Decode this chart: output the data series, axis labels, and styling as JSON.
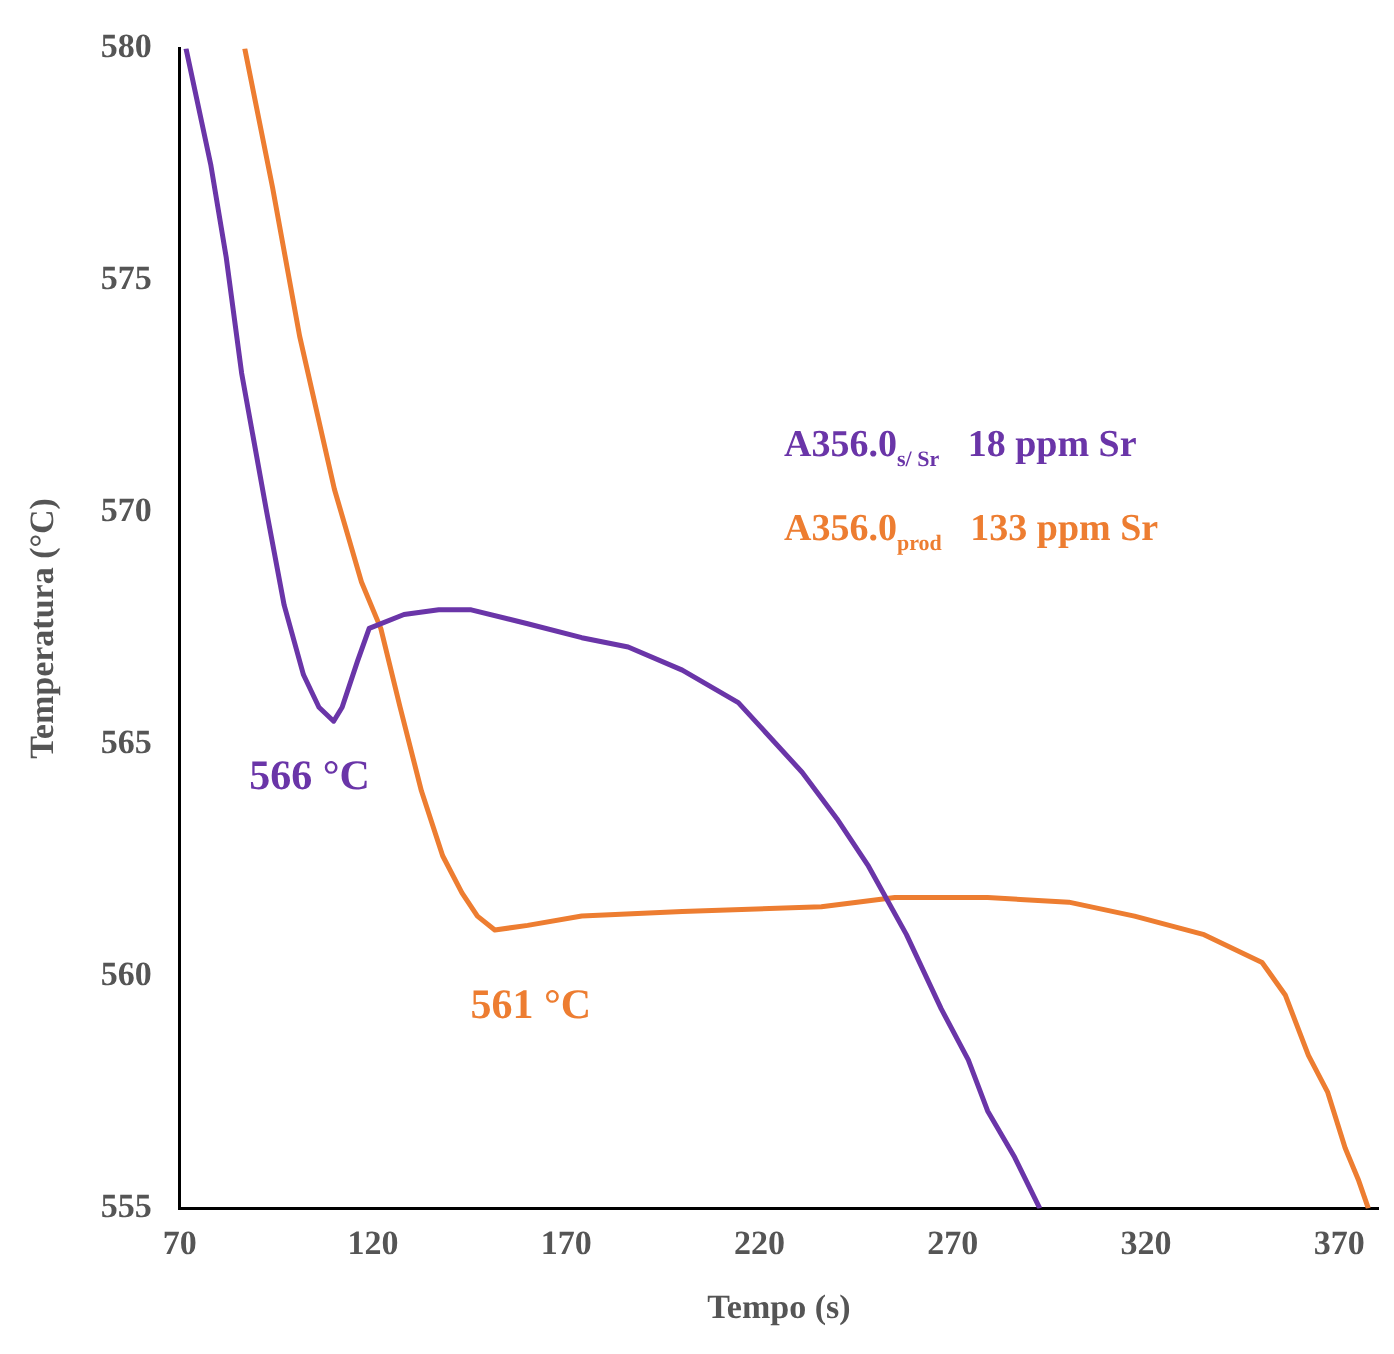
{
  "chart_data": {
    "type": "line",
    "xlabel": "Tempo (s)",
    "ylabel": "Temperatura (°C)",
    "xlim": [
      70,
      380
    ],
    "xticks": [
      70,
      120,
      170,
      220,
      270,
      320,
      370
    ],
    "ylim": [
      555,
      580
    ],
    "yticks": [
      555,
      560,
      565,
      570,
      575,
      580
    ],
    "grid": false,
    "marker": "none",
    "line_style": "solid",
    "series": [
      {
        "name": "A356.0$_{s/ Sr}$   18 ppm Sr",
        "color": "#6a35a8",
        "x": [
          71.6,
          78,
          82,
          86,
          92.5,
          97,
          102,
          106,
          109.8,
          112,
          116,
          119,
          128,
          137,
          145.4,
          160,
          174,
          186,
          200,
          214.5,
          231,
          240,
          248,
          258,
          267,
          274,
          279,
          286,
          292.5
        ],
        "values": [
          580,
          577.5,
          575.5,
          573,
          570,
          568,
          566.5,
          565.8,
          565.5,
          565.8,
          566.8,
          567.5,
          567.8,
          567.9,
          567.9,
          567.6,
          567.3,
          567.1,
          566.6,
          565.9,
          564.4,
          563.4,
          562.4,
          560.9,
          559.3,
          558.2,
          557.1,
          556.1,
          555
        ]
      },
      {
        "name": "A356.0$_{prod}$   133 ppm Sr",
        "color": "#ed7d31",
        "x": [
          86.8,
          94,
          101,
          110,
          117,
          122,
          127,
          132.5,
          138,
          143,
          147,
          151.5,
          160,
          174,
          200,
          236,
          255,
          279,
          300,
          317,
          335,
          350,
          356,
          362,
          367,
          371.5,
          375,
          377.5
        ],
        "values": [
          580,
          577,
          573.8,
          570.5,
          568.5,
          567.5,
          565.8,
          564,
          562.6,
          561.8,
          561.3,
          561,
          561.1,
          561.3,
          561.4,
          561.5,
          561.7,
          561.7,
          561.6,
          561.3,
          560.9,
          560.3,
          559.6,
          558.3,
          557.5,
          556.3,
          555.6,
          555
        ]
      }
    ],
    "annotations": [
      {
        "text": "566 °C",
        "x": 109.8,
        "y": 565.5
      },
      {
        "text": "561 °C",
        "x": 151.5,
        "y": 561
      }
    ]
  }
}
